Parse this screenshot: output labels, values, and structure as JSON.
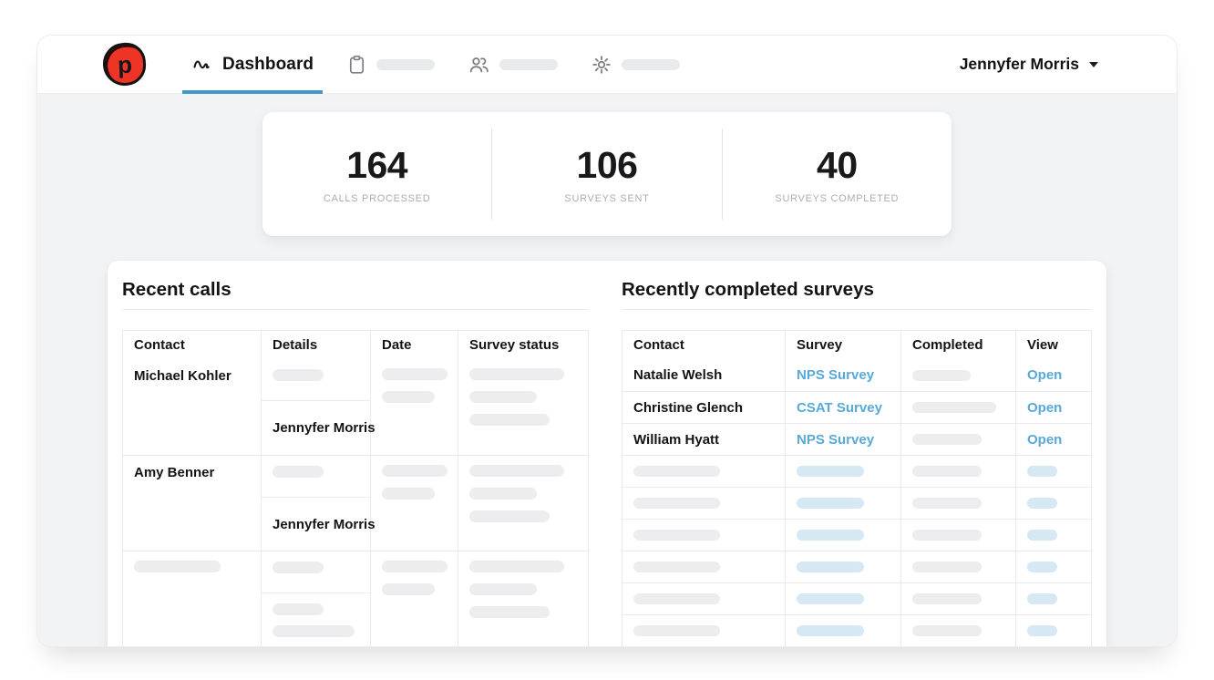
{
  "brand": {
    "logo_letter": "p",
    "logo_color": "#ee3424"
  },
  "nav": {
    "tabs": [
      {
        "id": "dashboard",
        "label": "Dashboard",
        "icon": "activity-icon",
        "active": true
      },
      {
        "id": "tab-2",
        "label": "",
        "icon": "clipboard-icon",
        "placeholder": true
      },
      {
        "id": "tab-3",
        "label": "",
        "icon": "people-icon",
        "placeholder": true
      },
      {
        "id": "tab-4",
        "label": "",
        "icon": "gear-icon",
        "placeholder": true
      }
    ],
    "user": {
      "name": "Jennyfer Morris"
    }
  },
  "stats": [
    {
      "value": "164",
      "label": "CALLS PROCESSED"
    },
    {
      "value": "106",
      "label": "SURVEYS SENT"
    },
    {
      "value": "40",
      "label": "SURVEYS COMPLETED"
    }
  ],
  "recent_calls": {
    "title": "Recent calls",
    "columns": [
      "Contact",
      "Details",
      "Date",
      "Survey status"
    ],
    "rows": [
      {
        "contact": "Michael Kohler",
        "agent": "Jennyfer Morris",
        "placeholder": false
      },
      {
        "contact": "Amy Benner",
        "agent": "Jennyfer Morris",
        "placeholder": false
      },
      {
        "contact": "",
        "agent": "",
        "placeholder": true
      }
    ]
  },
  "recent_surveys": {
    "title": "Recently completed surveys",
    "columns": [
      "Contact",
      "Survey",
      "Completed",
      "View"
    ],
    "rows": [
      {
        "contact": "Natalie Welsh",
        "survey": "NPS Survey",
        "view": "Open",
        "placeholder": false
      },
      {
        "contact": "Christine Glench",
        "survey": "CSAT Survey",
        "view": "Open",
        "placeholder": false
      },
      {
        "contact": "William Hyatt",
        "survey": "NPS Survey",
        "view": "Open",
        "placeholder": false
      },
      {
        "placeholder": true
      },
      {
        "placeholder": true
      },
      {
        "placeholder": true
      },
      {
        "placeholder": true
      },
      {
        "placeholder": true
      },
      {
        "placeholder": true
      }
    ]
  },
  "colors": {
    "link_blue": "#58a9d8",
    "tab_underline": "#4498c5",
    "logo_red": "#ee3424",
    "body_background": "#f2f3f5",
    "skeleton_gray": "#ededef",
    "skeleton_blue": "#d5e8f4"
  }
}
